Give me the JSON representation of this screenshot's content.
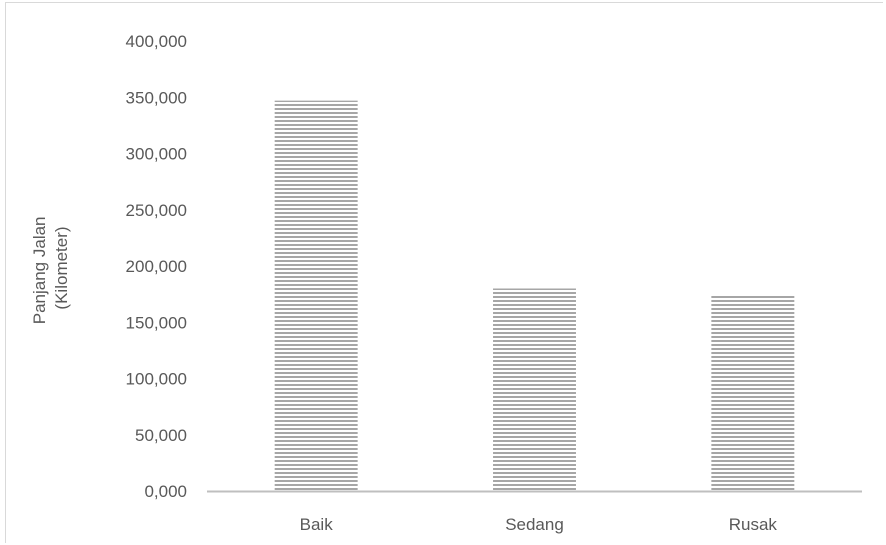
{
  "chart_data": {
    "type": "bar",
    "title": "",
    "xlabel": "",
    "ylabel_lines": [
      "Panjang Jalan",
      "(Kilometer)"
    ],
    "categories": [
      "Baik",
      "Sedang",
      "Rusak"
    ],
    "values": [
      347.0,
      180.0,
      174.0
    ],
    "ylim": [
      0,
      400
    ],
    "yticks": [
      0,
      50,
      100,
      150,
      200,
      250,
      300,
      350,
      400
    ],
    "ytick_labels": [
      "0,000",
      "50,000",
      "100,000",
      "150,000",
      "200,000",
      "250,000",
      "300,000",
      "350,000",
      "400,000"
    ],
    "grid": false,
    "legend": "none",
    "colors": {
      "bar_stripe": "#a6a6a6",
      "bar_bg": "#ffffff",
      "axis": "#bfbfbf",
      "text": "#595959"
    }
  }
}
